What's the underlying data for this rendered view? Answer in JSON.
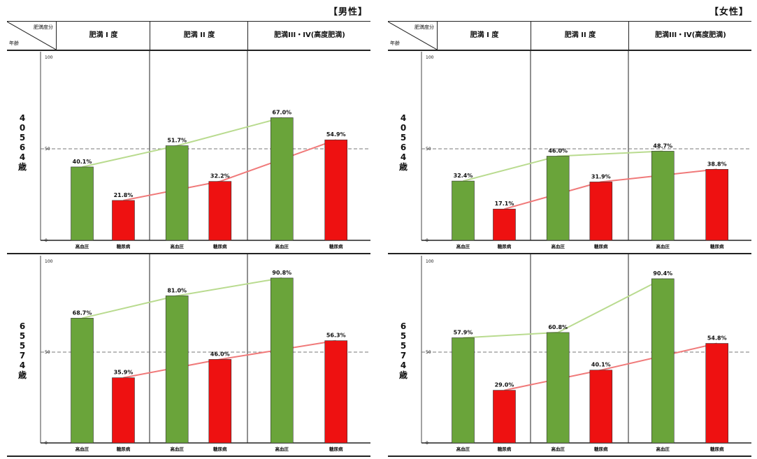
{
  "corner": {
    "top": "肥満度分",
    "bottom": "年齢"
  },
  "column_headers": [
    "肥満 I 度",
    "肥満 II 度",
    "肥満III・IV(高度肥満)"
  ],
  "x_labels": [
    "高血圧",
    "糖尿病",
    "高血圧",
    "糖尿病",
    "高血圧",
    "糖尿病"
  ],
  "colors": {
    "hypertension": "#6aa43a",
    "diabetes": "#ee1111",
    "hypertension_line": "#b9db8f",
    "diabetes_line": "#f07a7a"
  },
  "chart_data": [
    {
      "type": "bar",
      "gender": "【男性】",
      "age": [
        "4",
        "0",
        "5",
        "6",
        "4",
        "歳"
      ],
      "ylim": [
        0,
        100
      ],
      "yticks": [
        "0",
        "50",
        "100"
      ],
      "categories": [
        "肥満 I 度",
        "肥満 II 度",
        "肥満III・IV(高度肥満)"
      ],
      "series": [
        {
          "values": [
            40.1,
            51.7,
            67.0
          ],
          "labels": [
            "40.1%",
            "51.7%",
            "67.0%"
          ]
        },
        {
          "values": [
            21.8,
            32.2,
            54.9
          ],
          "labels": [
            "21.8%",
            "32.2%",
            "54.9%"
          ]
        }
      ]
    },
    {
      "type": "bar",
      "gender": "【男性】",
      "age": [
        "6",
        "5",
        "5",
        "7",
        "4",
        "歳"
      ],
      "ylim": [
        0,
        100
      ],
      "yticks": [
        "0",
        "50",
        "100"
      ],
      "categories": [
        "肥満 I 度",
        "肥満 II 度",
        "肥満III・IV(高度肥満)"
      ],
      "series": [
        {
          "values": [
            68.7,
            81.0,
            90.8
          ],
          "labels": [
            "68.7%",
            "81.0%",
            "90.8%"
          ]
        },
        {
          "values": [
            35.9,
            46.0,
            56.3
          ],
          "labels": [
            "35.9%",
            "46.0%",
            "56.3%"
          ]
        }
      ]
    },
    {
      "type": "bar",
      "gender": "【女性】",
      "age": [
        "4",
        "0",
        "5",
        "6",
        "4",
        "歳"
      ],
      "ylim": [
        0,
        100
      ],
      "yticks": [
        "0",
        "50",
        "100"
      ],
      "categories": [
        "肥満 I 度",
        "肥満 II 度",
        "肥満III・IV(高度肥満)"
      ],
      "series": [
        {
          "values": [
            32.4,
            46.0,
            48.7
          ],
          "labels": [
            "32.4%",
            "46.0%",
            "48.7%"
          ]
        },
        {
          "values": [
            17.1,
            31.9,
            38.8
          ],
          "labels": [
            "17.1%",
            "31.9%",
            "38.8%"
          ]
        }
      ]
    },
    {
      "type": "bar",
      "gender": "【女性】",
      "age": [
        "6",
        "5",
        "5",
        "7",
        "4",
        "歳"
      ],
      "ylim": [
        0,
        100
      ],
      "yticks": [
        "0",
        "50",
        "100"
      ],
      "categories": [
        "肥満 I 度",
        "肥満 II 度",
        "肥満III・IV(高度肥満)"
      ],
      "series": [
        {
          "values": [
            57.9,
            60.8,
            90.4
          ],
          "labels": [
            "57.9%",
            "60.8%",
            "90.4%"
          ]
        },
        {
          "values": [
            29.0,
            40.1,
            54.8
          ],
          "labels": [
            "29.0%",
            "40.1%",
            "54.8%"
          ]
        }
      ]
    }
  ]
}
